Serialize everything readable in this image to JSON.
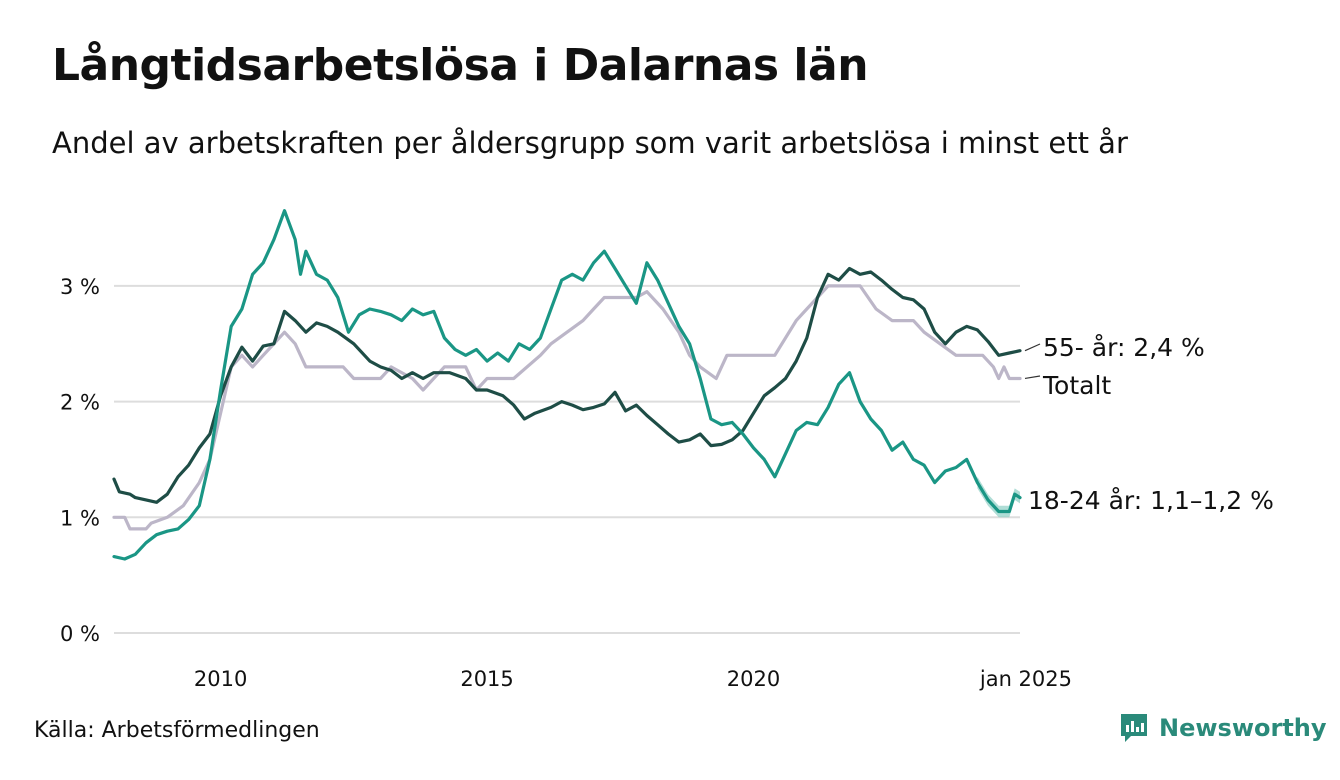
{
  "chart_data": {
    "type": "line",
    "title": "Långtidsarbetslösa i Dalarnas län",
    "subtitle": "Andel av arbetskraften per åldersgrupp som varit arbetslösa i minst ett år",
    "y_unit": "%",
    "ylim": [
      0,
      3.6
    ],
    "yticks": [
      0,
      1,
      2,
      3
    ],
    "ytick_labels": [
      "0 %",
      "1 %",
      "2 %",
      "3 %"
    ],
    "xlim": [
      2008.0,
      2025.0
    ],
    "xticks": [
      2010,
      2015,
      2020,
      2025
    ],
    "xtick_labels": [
      "2010",
      "2015",
      "2020",
      "jan 2025"
    ],
    "grid": "horizontal",
    "series": [
      {
        "name": "Totalt",
        "label": "Totalt",
        "color": "#bcb6c8",
        "points": [
          [
            2008.0,
            1.0
          ],
          [
            2008.2,
            1.0
          ],
          [
            2008.3,
            0.9
          ],
          [
            2008.6,
            0.9
          ],
          [
            2008.7,
            0.95
          ],
          [
            2009.0,
            1.0
          ],
          [
            2009.3,
            1.1
          ],
          [
            2009.6,
            1.3
          ],
          [
            2009.8,
            1.5
          ],
          [
            2010.0,
            1.9
          ],
          [
            2010.2,
            2.3
          ],
          [
            2010.4,
            2.4
          ],
          [
            2010.6,
            2.3
          ],
          [
            2010.8,
            2.4
          ],
          [
            2011.0,
            2.5
          ],
          [
            2011.2,
            2.6
          ],
          [
            2011.4,
            2.5
          ],
          [
            2011.6,
            2.3
          ],
          [
            2012.0,
            2.3
          ],
          [
            2012.3,
            2.3
          ],
          [
            2012.5,
            2.2
          ],
          [
            2013.0,
            2.2
          ],
          [
            2013.2,
            2.3
          ],
          [
            2013.6,
            2.2
          ],
          [
            2013.8,
            2.1
          ],
          [
            2014.2,
            2.3
          ],
          [
            2014.6,
            2.3
          ],
          [
            2014.8,
            2.1
          ],
          [
            2015.0,
            2.2
          ],
          [
            2015.5,
            2.2
          ],
          [
            2016.0,
            2.4
          ],
          [
            2016.2,
            2.5
          ],
          [
            2016.5,
            2.6
          ],
          [
            2016.8,
            2.7
          ],
          [
            2017.0,
            2.8
          ],
          [
            2017.2,
            2.9
          ],
          [
            2017.8,
            2.9
          ],
          [
            2018.0,
            2.95
          ],
          [
            2018.3,
            2.8
          ],
          [
            2018.6,
            2.6
          ],
          [
            2018.8,
            2.4
          ],
          [
            2019.0,
            2.3
          ],
          [
            2019.3,
            2.2
          ],
          [
            2019.5,
            2.4
          ],
          [
            2020.0,
            2.4
          ],
          [
            2020.4,
            2.4
          ],
          [
            2020.8,
            2.7
          ],
          [
            2021.0,
            2.8
          ],
          [
            2021.2,
            2.9
          ],
          [
            2021.4,
            3.0
          ],
          [
            2022.0,
            3.0
          ],
          [
            2022.3,
            2.8
          ],
          [
            2022.6,
            2.7
          ],
          [
            2023.0,
            2.7
          ],
          [
            2023.2,
            2.6
          ],
          [
            2023.5,
            2.5
          ],
          [
            2023.8,
            2.4
          ],
          [
            2024.0,
            2.4
          ],
          [
            2024.3,
            2.4
          ],
          [
            2024.5,
            2.3
          ],
          [
            2024.6,
            2.2
          ],
          [
            2024.7,
            2.3
          ],
          [
            2024.8,
            2.2
          ],
          [
            2025.0,
            2.2
          ]
        ]
      },
      {
        "name": "55- år",
        "label": "55- år: 2,4 %",
        "color": "#1e4d46",
        "points": [
          [
            2008.0,
            1.33
          ],
          [
            2008.1,
            1.22
          ],
          [
            2008.3,
            1.2
          ],
          [
            2008.4,
            1.17
          ],
          [
            2008.6,
            1.15
          ],
          [
            2008.8,
            1.13
          ],
          [
            2009.0,
            1.2
          ],
          [
            2009.2,
            1.35
          ],
          [
            2009.4,
            1.45
          ],
          [
            2009.6,
            1.6
          ],
          [
            2009.8,
            1.72
          ],
          [
            2010.0,
            2.05
          ],
          [
            2010.2,
            2.3
          ],
          [
            2010.4,
            2.47
          ],
          [
            2010.6,
            2.35
          ],
          [
            2010.8,
            2.48
          ],
          [
            2011.0,
            2.5
          ],
          [
            2011.2,
            2.78
          ],
          [
            2011.4,
            2.7
          ],
          [
            2011.6,
            2.6
          ],
          [
            2011.8,
            2.68
          ],
          [
            2012.0,
            2.65
          ],
          [
            2012.2,
            2.6
          ],
          [
            2012.5,
            2.5
          ],
          [
            2012.8,
            2.35
          ],
          [
            2013.0,
            2.3
          ],
          [
            2013.2,
            2.27
          ],
          [
            2013.4,
            2.2
          ],
          [
            2013.6,
            2.25
          ],
          [
            2013.8,
            2.2
          ],
          [
            2014.0,
            2.25
          ],
          [
            2014.3,
            2.25
          ],
          [
            2014.6,
            2.2
          ],
          [
            2014.8,
            2.1
          ],
          [
            2015.0,
            2.1
          ],
          [
            2015.3,
            2.05
          ],
          [
            2015.5,
            1.97
          ],
          [
            2015.7,
            1.85
          ],
          [
            2015.9,
            1.9
          ],
          [
            2016.2,
            1.95
          ],
          [
            2016.4,
            2.0
          ],
          [
            2016.6,
            1.97
          ],
          [
            2016.8,
            1.93
          ],
          [
            2017.0,
            1.95
          ],
          [
            2017.2,
            1.98
          ],
          [
            2017.4,
            2.08
          ],
          [
            2017.6,
            1.92
          ],
          [
            2017.8,
            1.97
          ],
          [
            2018.0,
            1.88
          ],
          [
            2018.2,
            1.8
          ],
          [
            2018.4,
            1.72
          ],
          [
            2018.6,
            1.65
          ],
          [
            2018.8,
            1.67
          ],
          [
            2019.0,
            1.72
          ],
          [
            2019.2,
            1.62
          ],
          [
            2019.4,
            1.63
          ],
          [
            2019.6,
            1.67
          ],
          [
            2019.8,
            1.75
          ],
          [
            2020.0,
            1.9
          ],
          [
            2020.2,
            2.05
          ],
          [
            2020.4,
            2.12
          ],
          [
            2020.6,
            2.2
          ],
          [
            2020.8,
            2.35
          ],
          [
            2021.0,
            2.55
          ],
          [
            2021.2,
            2.9
          ],
          [
            2021.4,
            3.1
          ],
          [
            2021.6,
            3.05
          ],
          [
            2021.8,
            3.15
          ],
          [
            2022.0,
            3.1
          ],
          [
            2022.2,
            3.12
          ],
          [
            2022.4,
            3.05
          ],
          [
            2022.6,
            2.97
          ],
          [
            2022.8,
            2.9
          ],
          [
            2023.0,
            2.88
          ],
          [
            2023.2,
            2.8
          ],
          [
            2023.4,
            2.6
          ],
          [
            2023.6,
            2.5
          ],
          [
            2023.8,
            2.6
          ],
          [
            2024.0,
            2.65
          ],
          [
            2024.2,
            2.62
          ],
          [
            2024.4,
            2.52
          ],
          [
            2024.6,
            2.4
          ],
          [
            2024.8,
            2.42
          ],
          [
            2025.0,
            2.44
          ]
        ]
      },
      {
        "name": "18-24 år",
        "label": "18-24 år: 1,1–1,2 %",
        "color": "#1a9685",
        "band_color": "#8dcfc4",
        "points": [
          [
            2008.0,
            0.66
          ],
          [
            2008.2,
            0.64
          ],
          [
            2008.4,
            0.68
          ],
          [
            2008.6,
            0.78
          ],
          [
            2008.8,
            0.85
          ],
          [
            2009.0,
            0.88
          ],
          [
            2009.2,
            0.9
          ],
          [
            2009.4,
            0.98
          ],
          [
            2009.6,
            1.1
          ],
          [
            2009.8,
            1.5
          ],
          [
            2010.0,
            2.1
          ],
          [
            2010.2,
            2.65
          ],
          [
            2010.4,
            2.8
          ],
          [
            2010.6,
            3.1
          ],
          [
            2010.8,
            3.2
          ],
          [
            2011.0,
            3.4
          ],
          [
            2011.2,
            3.65
          ],
          [
            2011.4,
            3.4
          ],
          [
            2011.5,
            3.1
          ],
          [
            2011.6,
            3.3
          ],
          [
            2011.8,
            3.1
          ],
          [
            2012.0,
            3.05
          ],
          [
            2012.2,
            2.9
          ],
          [
            2012.4,
            2.6
          ],
          [
            2012.6,
            2.75
          ],
          [
            2012.8,
            2.8
          ],
          [
            2013.0,
            2.78
          ],
          [
            2013.2,
            2.75
          ],
          [
            2013.4,
            2.7
          ],
          [
            2013.6,
            2.8
          ],
          [
            2013.8,
            2.75
          ],
          [
            2014.0,
            2.78
          ],
          [
            2014.2,
            2.55
          ],
          [
            2014.4,
            2.45
          ],
          [
            2014.6,
            2.4
          ],
          [
            2014.8,
            2.45
          ],
          [
            2015.0,
            2.35
          ],
          [
            2015.2,
            2.42
          ],
          [
            2015.4,
            2.35
          ],
          [
            2015.6,
            2.5
          ],
          [
            2015.8,
            2.45
          ],
          [
            2016.0,
            2.55
          ],
          [
            2016.2,
            2.8
          ],
          [
            2016.4,
            3.05
          ],
          [
            2016.6,
            3.1
          ],
          [
            2016.8,
            3.05
          ],
          [
            2017.0,
            3.2
          ],
          [
            2017.2,
            3.3
          ],
          [
            2017.4,
            3.15
          ],
          [
            2017.6,
            3.0
          ],
          [
            2017.8,
            2.85
          ],
          [
            2018.0,
            3.2
          ],
          [
            2018.2,
            3.05
          ],
          [
            2018.4,
            2.85
          ],
          [
            2018.6,
            2.65
          ],
          [
            2018.8,
            2.5
          ],
          [
            2019.0,
            2.2
          ],
          [
            2019.2,
            1.85
          ],
          [
            2019.4,
            1.8
          ],
          [
            2019.6,
            1.82
          ],
          [
            2019.8,
            1.72
          ],
          [
            2020.0,
            1.6
          ],
          [
            2020.2,
            1.5
          ],
          [
            2020.4,
            1.35
          ],
          [
            2020.6,
            1.55
          ],
          [
            2020.8,
            1.75
          ],
          [
            2021.0,
            1.82
          ],
          [
            2021.2,
            1.8
          ],
          [
            2021.4,
            1.95
          ],
          [
            2021.6,
            2.15
          ],
          [
            2021.8,
            2.25
          ],
          [
            2022.0,
            2.0
          ],
          [
            2022.2,
            1.85
          ],
          [
            2022.4,
            1.75
          ],
          [
            2022.6,
            1.58
          ],
          [
            2022.8,
            1.65
          ],
          [
            2023.0,
            1.5
          ],
          [
            2023.2,
            1.45
          ],
          [
            2023.4,
            1.3
          ],
          [
            2023.6,
            1.4
          ],
          [
            2023.8,
            1.43
          ],
          [
            2024.0,
            1.5
          ],
          [
            2024.2,
            1.3
          ],
          [
            2024.4,
            1.15
          ],
          [
            2024.6,
            1.05
          ],
          [
            2024.8,
            1.05
          ],
          [
            2024.9,
            1.2
          ],
          [
            2025.0,
            1.17
          ]
        ]
      }
    ]
  },
  "source": "Källa: Arbetsförmedlingen",
  "brand": {
    "name": "Newsworthy",
    "logo_icon": "newsworthy-logo-icon",
    "color": "#2a8a7a"
  }
}
